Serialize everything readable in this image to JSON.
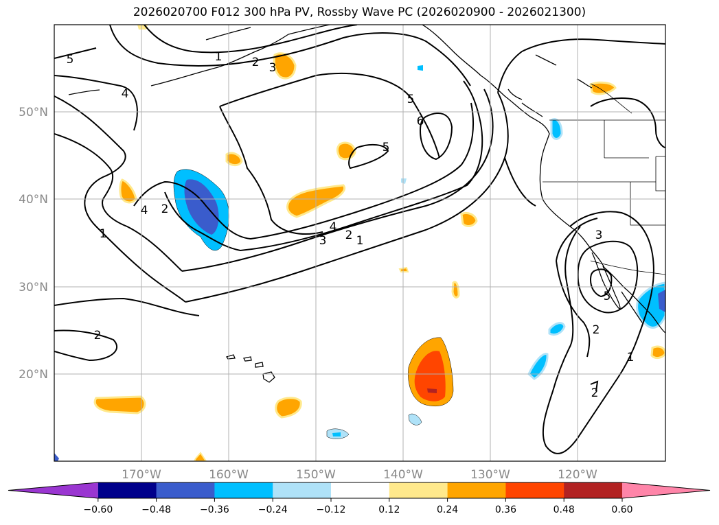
{
  "title": "2026020700 F012 300 hPa PV, Rossby Wave PC (2026020900 - 2026021300)",
  "lat_labels": [
    "50°N",
    "40°N",
    "30°N",
    "20°N"
  ],
  "lon_labels": [
    "170°W",
    "160°W",
    "150°W",
    "140°W",
    "130°W",
    "120°W"
  ],
  "pv_contour_labels": [
    "1",
    "2",
    "3",
    "4",
    "5",
    "6"
  ],
  "colorbar": {
    "ticks": [
      "−0.60",
      "−0.48",
      "−0.36",
      "−0.24",
      "−0.12",
      "0.12",
      "0.24",
      "0.36",
      "0.48",
      "0.60"
    ],
    "colors": [
      "#9a36d1",
      "#00008b",
      "#3a5ccc",
      "#00bfff",
      "#afe2f8",
      "#ffffff",
      "#ffe98c",
      "#ffa500",
      "#ff4500",
      "#b22222",
      "#ff85a9"
    ]
  },
  "colors": {
    "land_outline": "#000000",
    "contour": "#000000",
    "grid": "#b0b0b0",
    "tick_text": "#888888"
  }
}
